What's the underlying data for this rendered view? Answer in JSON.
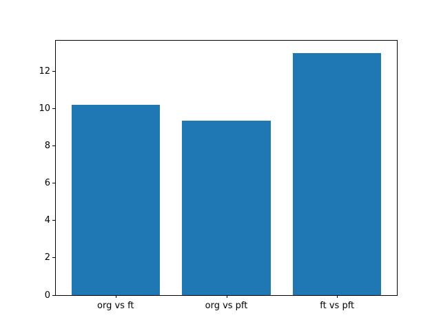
{
  "chart_data": {
    "type": "bar",
    "title": "",
    "xlabel": "",
    "ylabel": "",
    "categories": [
      "org vs ft",
      "org vs pft",
      "ft vs pft"
    ],
    "values": [
      10.2,
      9.35,
      13.0
    ],
    "yticks": [
      0,
      2,
      4,
      6,
      8,
      10,
      12
    ],
    "ylim": [
      0,
      13.65
    ],
    "xlim": [
      -0.54,
      2.54
    ],
    "bar_width": 0.8,
    "bar_color": "#1f77b4",
    "grid": false,
    "legend": "none",
    "background_color": "#ffffff",
    "spine_color": "#000000"
  }
}
